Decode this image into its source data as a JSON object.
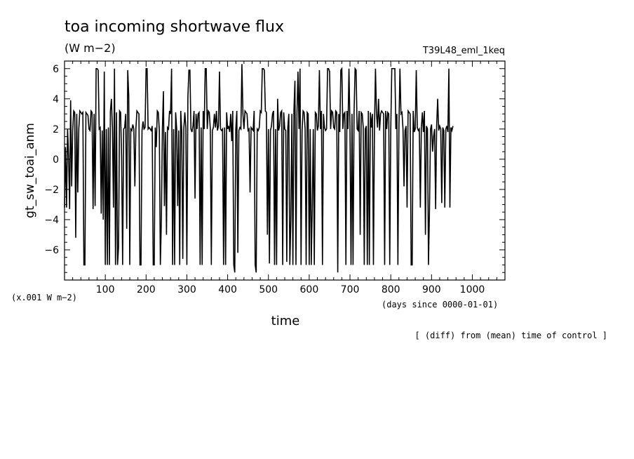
{
  "chart_data": {
    "type": "line",
    "title": "toa incoming shortwave flux",
    "units": "(W m−2)",
    "experiment": "T39L48_eml_1keq",
    "xlabel": "time",
    "x_units": "(days since 0000-01-01)",
    "ylabel": "gt_sw_toai_anm",
    "y_scale_note": "(x.001 W m−2)",
    "footnote": "[ (diff) from (mean) time of control ]",
    "xlim": [
      0,
      1080
    ],
    "ylim": [
      -8,
      6.5
    ],
    "x_ticks": [
      100,
      200,
      300,
      400,
      500,
      600,
      700,
      800,
      900,
      1000
    ],
    "y_ticks": [
      -6,
      -4,
      -2,
      0,
      2,
      4,
      6
    ],
    "x_start": 0,
    "x_step": 2.5,
    "series": [
      {
        "values": [
          -3.2,
          0.8,
          -3.2,
          2.0,
          0.2,
          -3.3,
          3.9,
          -1.8,
          1.9,
          3.2,
          3.1,
          -5.2,
          3.0,
          -2.2,
          2.0,
          3.2,
          3.1,
          3.0,
          3.1,
          -7.0,
          -7.0,
          3.1,
          3.0,
          2.9,
          2.0,
          1.9,
          3.2,
          3.1,
          -3.3,
          3.0,
          -3.1,
          6.0,
          6.0,
          5.9,
          2.0,
          2.1,
          -3.6,
          1.9,
          -4.0,
          5.8,
          -7.0,
          2.0,
          -7.0,
          2.1,
          -7.0,
          3.2,
          4.0,
          2.0,
          -3.2,
          6.0,
          -7.0,
          3.1,
          -7.0,
          -5.8,
          3.2,
          3.1,
          0.1,
          -7.0,
          2.0,
          2.1,
          3.0,
          -4.6,
          5.9,
          4.2,
          -7.0,
          2.0,
          1.9,
          2.3,
          2.0,
          -1.8,
          2.0,
          3.2,
          3.1,
          3.0,
          -7.0,
          -7.0,
          1.9,
          2.5,
          2.0,
          2.1,
          6.0,
          6.0,
          2.0,
          2.1,
          2.0,
          1.9,
          2.2,
          -7.0,
          -7.0,
          2.1,
          0.8,
          3.2,
          3.1,
          1.9,
          -7.0,
          -4.0,
          2.0,
          4.5,
          -3.1,
          1.8,
          -5.0,
          2.1,
          2.0,
          3.2,
          3.0,
          6.0,
          -7.0,
          2.0,
          -7.0,
          3.1,
          2.0,
          -3.1,
          1.9,
          -7.0,
          3.2,
          1.8,
          -6.6,
          2.0,
          3.1,
          2.1,
          -7.0,
          4.1,
          5.9,
          5.9,
          2.0,
          1.8,
          2.2,
          3.2,
          -2.6,
          3.0,
          2.0,
          3.0,
          3.1,
          -7.0,
          2.1,
          -7.0,
          3.2,
          2.0,
          6.0,
          6.0,
          2.0,
          3.2,
          3.1,
          2.0,
          -7.0,
          1.9,
          2.1,
          3.0,
          2.1,
          3.2,
          1.9,
          2.2,
          5.8,
          2.0,
          1.9,
          2.0,
          -7.0,
          2.1,
          -7.0,
          3.1,
          2.0,
          2.2,
          1.8,
          3.0,
          1.2,
          3.2,
          -7.0,
          -7.5,
          2.0,
          3.2,
          -6.2,
          1.9,
          2.1,
          2.0,
          6.3,
          3.0,
          2.0,
          3.2,
          3.1,
          3.0,
          1.9,
          2.0,
          -2.2,
          2.1,
          2.0,
          1.9,
          3.2,
          -7.0,
          -7.5,
          2.0,
          1.9,
          2.1,
          3.2,
          3.1,
          6.0,
          6.0,
          5.9,
          3.2,
          3.1,
          -5.0,
          2.0,
          -6.9,
          1.9,
          2.2,
          3.0,
          3.2,
          -7.0,
          2.0,
          -7.0,
          4.0,
          1.9,
          2.2,
          3.1,
          3.2,
          -7.0,
          3.1,
          2.0,
          1.9,
          -6.8,
          2.1,
          3.0,
          -7.0,
          -4.0,
          3.0,
          -7.0,
          3.2,
          5.2,
          -7.0,
          3.0,
          5.8,
          2.0,
          6.0,
          -7.0,
          1.9,
          3.2,
          3.1,
          2.0,
          -7.0,
          3.1,
          3.0,
          -7.0,
          2.0,
          -7.0,
          -3.2,
          2.0,
          -7.0,
          3.1,
          3.0,
          1.9,
          2.2,
          5.9,
          2.0,
          3.2,
          -7.0,
          3.0,
          2.1,
          1.9,
          2.0,
          6.0,
          6.0,
          5.8,
          2.0,
          3.2,
          3.1,
          2.1,
          2.0,
          3.2,
          3.1,
          -7.5,
          3.0,
          1.8,
          5.9,
          6.0,
          2.0,
          3.0,
          3.1,
          -7.0,
          3.2,
          2.0,
          6.0,
          2.1,
          -7.0,
          3.0,
          -7.0,
          3.1,
          6.0,
          5.9,
          2.0,
          1.9,
          3.2,
          -5.0,
          3.1,
          3.0,
          2.1,
          -7.0,
          2.0,
          2.2,
          -7.0,
          3.2,
          -7.0,
          3.1,
          2.1,
          3.0,
          -7.0,
          2.0,
          6.0,
          3.0,
          2.1,
          4.0,
          1.9,
          3.0,
          3.2,
          3.1,
          3.0,
          -7.0,
          3.2,
          2.0,
          3.1,
          3.0,
          -7.0,
          2.0,
          6.0,
          6.0,
          6.0,
          6.0,
          2.0,
          3.0,
          -7.0,
          2.1,
          6.0,
          3.0,
          3.1,
          2.0,
          -1.8,
          1.9,
          2.2,
          -3.2,
          3.2,
          3.1,
          3.0,
          -7.0,
          -7.0,
          3.2,
          1.8,
          2.0,
          5.9,
          2.1,
          1.9,
          2.0,
          -3.2,
          2.1,
          3.1,
          1.8,
          3.2,
          -5.0,
          2.2,
          2.0,
          -7.0,
          -3.2,
          2.0,
          2.3,
          0.5,
          1.5,
          2.0,
          -3.3,
          2.2,
          4.0,
          1.9,
          2.2,
          2.0,
          -2.9,
          2.1,
          1.9,
          -3.2,
          2.0,
          2.2,
          1.8,
          6.0,
          -3.2,
          2.1,
          1.9,
          2.2
        ]
      }
    ],
    "colors": {
      "line": "#000000",
      "axes": "#000000",
      "background": "#ffffff"
    }
  }
}
